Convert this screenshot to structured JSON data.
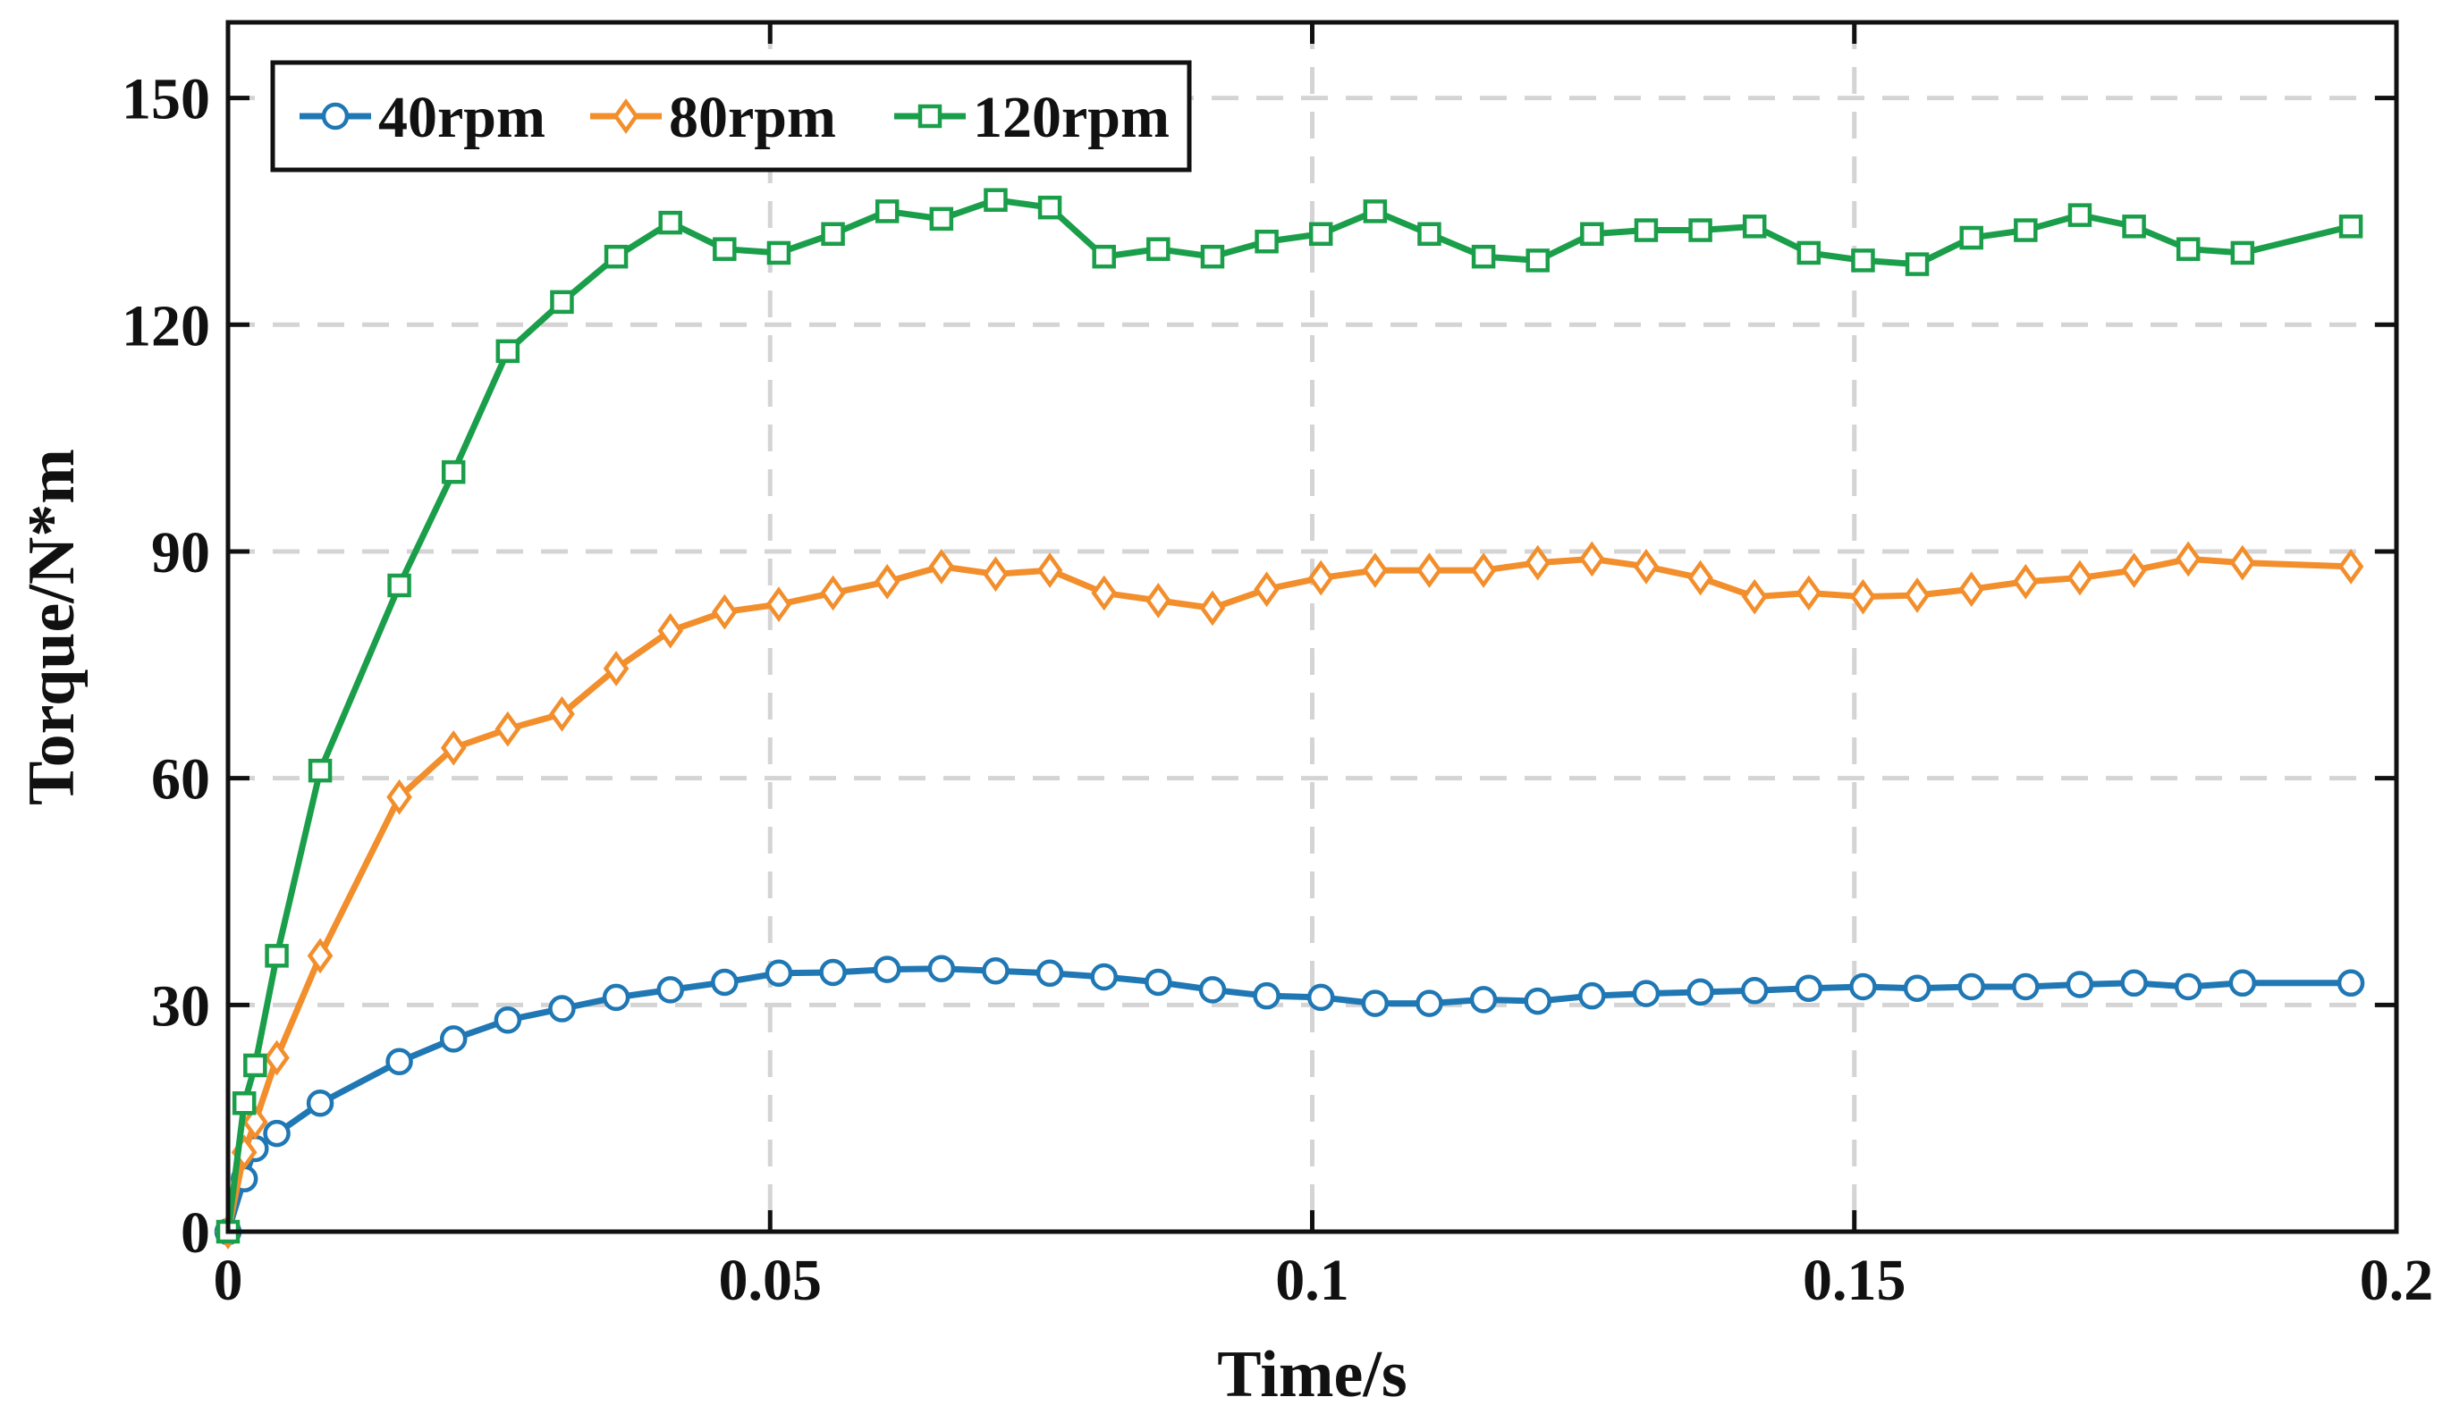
{
  "chart_data": {
    "type": "line",
    "title": "",
    "xlabel": "Time/s",
    "ylabel": "Torque/N*m",
    "xlim": [
      0,
      0.2
    ],
    "ylim": [
      0,
      160
    ],
    "xticks": [
      0,
      0.05,
      0.1,
      0.15,
      0.2
    ],
    "xtick_labels": [
      "0",
      "0.05",
      "0.1",
      "0.15",
      "0.2"
    ],
    "yticks": [
      0,
      30,
      60,
      90,
      120,
      150
    ],
    "ytick_labels": [
      "0",
      "30",
      "60",
      "90",
      "120",
      "150"
    ],
    "grid": true,
    "legend_position": "top-left",
    "x": [
      0,
      0.0015,
      0.0025,
      0.0045,
      0.0085,
      0.0158,
      0.0208,
      0.0258,
      0.0308,
      0.0358,
      0.0408,
      0.0458,
      0.0508,
      0.0558,
      0.0608,
      0.0658,
      0.0708,
      0.0758,
      0.0808,
      0.0858,
      0.0908,
      0.0958,
      0.1008,
      0.1058,
      0.1108,
      0.1158,
      0.1208,
      0.1258,
      0.1308,
      0.1358,
      0.1408,
      0.1458,
      0.1508,
      0.1558,
      0.1608,
      0.1658,
      0.1708,
      0.1758,
      0.1808,
      0.1858,
      0.1958
    ],
    "series": [
      {
        "name": "40rpm",
        "color": "#1f77b4",
        "marker": "circle",
        "values": [
          0,
          7,
          11,
          13,
          17,
          22.5,
          25.5,
          28,
          29.5,
          31,
          32,
          33,
          34.2,
          34.3,
          34.7,
          34.8,
          34.5,
          34.2,
          33.7,
          33,
          32,
          31.2,
          31,
          30.2,
          30.2,
          30.7,
          30.5,
          31.2,
          31.5,
          31.7,
          31.9,
          32.2,
          32.4,
          32.2,
          32.4,
          32.4,
          32.7,
          32.9,
          32.4,
          32.9,
          32.9
        ]
      },
      {
        "name": "80rpm",
        "color": "#f28e2b",
        "marker": "diamond",
        "values": [
          0,
          10.5,
          14.5,
          23,
          36.5,
          57.5,
          64,
          66.5,
          68.5,
          74.5,
          79.5,
          82,
          83,
          84.5,
          86,
          88,
          87,
          87.5,
          84.5,
          83.5,
          82.5,
          85,
          86.5,
          87.5,
          87.5,
          87.5,
          88.5,
          89,
          88,
          86.5,
          84,
          84.5,
          84,
          84.2,
          85,
          86,
          86.5,
          87.5,
          89,
          88.5,
          88
        ]
      },
      {
        "name": "120rpm",
        "color": "#1a9e4a",
        "marker": "square",
        "values": [
          0,
          17,
          22,
          36.5,
          61,
          85.5,
          100.5,
          116.5,
          123,
          129,
          133.5,
          130,
          129.5,
          132,
          135,
          134,
          136.5,
          135.5,
          129,
          130,
          129,
          131,
          132,
          135,
          132,
          129,
          128.5,
          132,
          132.5,
          132.5,
          133,
          129.5,
          128.5,
          128,
          131.5,
          132.5,
          134.5,
          133,
          130,
          129.5,
          133
        ]
      }
    ]
  }
}
